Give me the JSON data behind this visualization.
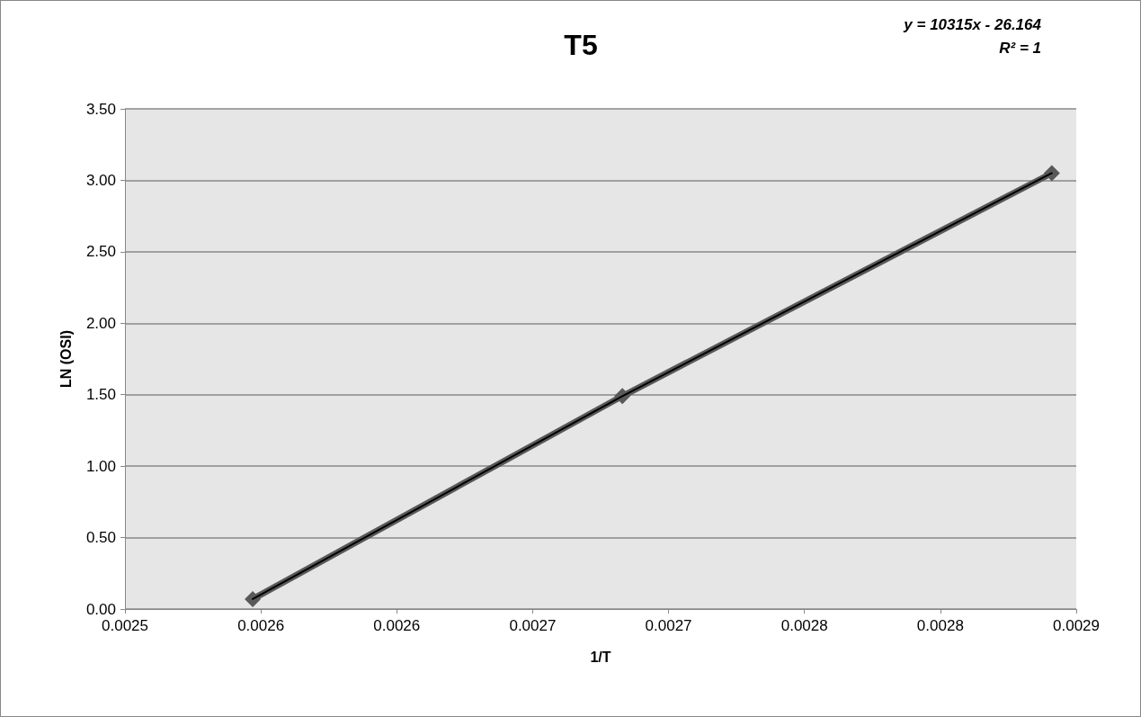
{
  "chart_data": {
    "type": "line",
    "title": "T5",
    "xlabel": "1/T",
    "ylabel": "LN (OSI)",
    "annotations": [
      "y = 10315x - 26.164",
      "R² = 1"
    ],
    "x": [
      0.002547,
      0.002683,
      0.002841
    ],
    "series": [
      {
        "color": "#595959",
        "values": [
          0.07,
          1.49,
          3.05
        ],
        "marker": "diamond"
      },
      {
        "color": "#000000",
        "values": [
          0.07,
          1.49,
          3.05
        ],
        "marker": "none"
      }
    ],
    "xlim": [
      0.0025,
      0.00285
    ],
    "xticks": [
      {
        "value": 0.0025,
        "label": "0.0025"
      },
      {
        "value": 0.00255,
        "label": "0.0026"
      },
      {
        "value": 0.0026,
        "label": "0.0026"
      },
      {
        "value": 0.00265,
        "label": "0.0027"
      },
      {
        "value": 0.0027,
        "label": "0.0027"
      },
      {
        "value": 0.00275,
        "label": "0.0028"
      },
      {
        "value": 0.0028,
        "label": "0.0028"
      },
      {
        "value": 0.00285,
        "label": "0.0029"
      }
    ],
    "ylim": [
      0,
      3.5
    ],
    "yticks": [
      {
        "value": 0,
        "label": "0.00"
      },
      {
        "value": 0.5,
        "label": "0.50"
      },
      {
        "value": 1,
        "label": "1.00"
      },
      {
        "value": 1.5,
        "label": "1.50"
      },
      {
        "value": 2,
        "label": "2.00"
      },
      {
        "value": 2.5,
        "label": "2.50"
      },
      {
        "value": 3,
        "label": "3.00"
      },
      {
        "value": 3.5,
        "label": "3.50"
      }
    ],
    "grid": "y"
  }
}
